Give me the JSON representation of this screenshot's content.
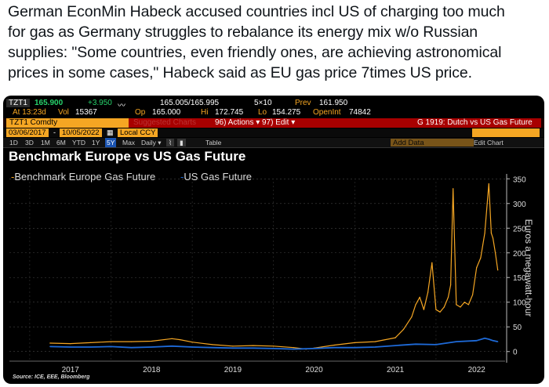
{
  "tweet": {
    "line1": "German EconMin Habeck accused countries incl US of charging too much",
    "line2": "for gas as Germany struggles to rebalance its energy mix w/o Russian",
    "line3": "supplies: \"Some countries, even friendly ones, are achieving astronomical",
    "line4": "prices in some cases,\" Habeck said as EU gas price 7times US price."
  },
  "quote": {
    "ticker": "TZT1",
    "last": "165.900",
    "change": "+3.950",
    "bidask": "165.005/165.995",
    "size": "5×10",
    "prev_label": "Prev",
    "prev": "161.950",
    "time": "At 13:23d",
    "vol_label": "Vol",
    "vol": "15367",
    "op_label": "Op",
    "op": "165.000",
    "hi_label": "Hi",
    "hi": "172.745",
    "lo_label": "Lo",
    "lo": "154.275",
    "oi_label": "OpenInt",
    "oi": "74842"
  },
  "toolbar": {
    "security": "TZT1 Comdty",
    "suggested": "Suggested Charts",
    "actions": "96) Actions ▾",
    "edit": "97) Edit ▾",
    "chart_id": "G 1919: Dutch vs US Gas Future",
    "date_from": "03/06/2017",
    "date_to": "10/05/2022",
    "currency": "Local CCY",
    "add_data": "Add Data",
    "edit_chart": "Edit Chart",
    "timeframes": [
      "1D",
      "3D",
      "1M",
      "6M",
      "YTD",
      "1Y",
      "5Y",
      "Max"
    ],
    "selected_tf": "5Y",
    "period": "Daily ▾",
    "table": "Table"
  },
  "chart_data": {
    "type": "line",
    "title": "Benchmark Europe vs US Gas Future",
    "ylabel": "Euros a megawatt-hour",
    "ylim": [
      -10,
      360
    ],
    "yticks": [
      "0",
      "50",
      "100",
      "150",
      "200",
      "250",
      "300",
      "350"
    ],
    "xticks": [
      "2017",
      "2018",
      "2019",
      "2020",
      "2021",
      "2022"
    ],
    "legend": [
      "Benchmark Europe Gas Future",
      "US Gas Future"
    ],
    "source": "Source: ICE, EEE, Bloomberg",
    "colors": {
      "europe": "#f5a623",
      "us": "#1e6ad8"
    },
    "series": [
      {
        "name": "Benchmark Europe Gas Future",
        "x": [
          2017.25,
          2017.5,
          2017.75,
          2018.0,
          2018.25,
          2018.5,
          2018.75,
          2018.85,
          2019.0,
          2019.25,
          2019.5,
          2019.75,
          2020.0,
          2020.25,
          2020.4,
          2020.5,
          2020.75,
          2021.0,
          2021.25,
          2021.5,
          2021.6,
          2021.7,
          2021.75,
          2021.8,
          2021.85,
          2021.9,
          2021.95,
          2022.0,
          2022.05,
          2022.1,
          2022.15,
          2022.18,
          2022.21,
          2022.25,
          2022.3,
          2022.35,
          2022.4,
          2022.45,
          2022.5,
          2022.55,
          2022.6,
          2022.63,
          2022.65,
          2022.68,
          2022.7,
          2022.73,
          2022.76
        ],
        "values": [
          17,
          16,
          18,
          20,
          20,
          21,
          26,
          24,
          19,
          14,
          11,
          12,
          11,
          8,
          5,
          7,
          13,
          18,
          20,
          28,
          45,
          70,
          95,
          110,
          85,
          120,
          180,
          85,
          80,
          90,
          110,
          135,
          330,
          95,
          90,
          100,
          95,
          115,
          170,
          190,
          240,
          300,
          340,
          240,
          230,
          200,
          165
        ]
      },
      {
        "name": "US Gas Future",
        "x": [
          2017.25,
          2017.5,
          2017.75,
          2018.0,
          2018.25,
          2018.5,
          2018.75,
          2019.0,
          2019.25,
          2019.5,
          2019.75,
          2020.0,
          2020.25,
          2020.5,
          2020.75,
          2021.0,
          2021.25,
          2021.5,
          2021.75,
          2022.0,
          2022.25,
          2022.5,
          2022.6,
          2022.65,
          2022.7,
          2022.76
        ],
        "values": [
          10,
          9,
          9,
          10,
          8,
          9,
          11,
          9,
          8,
          7,
          7,
          6,
          5,
          6,
          8,
          8,
          9,
          12,
          15,
          14,
          20,
          22,
          27,
          25,
          22,
          20
        ]
      }
    ]
  }
}
